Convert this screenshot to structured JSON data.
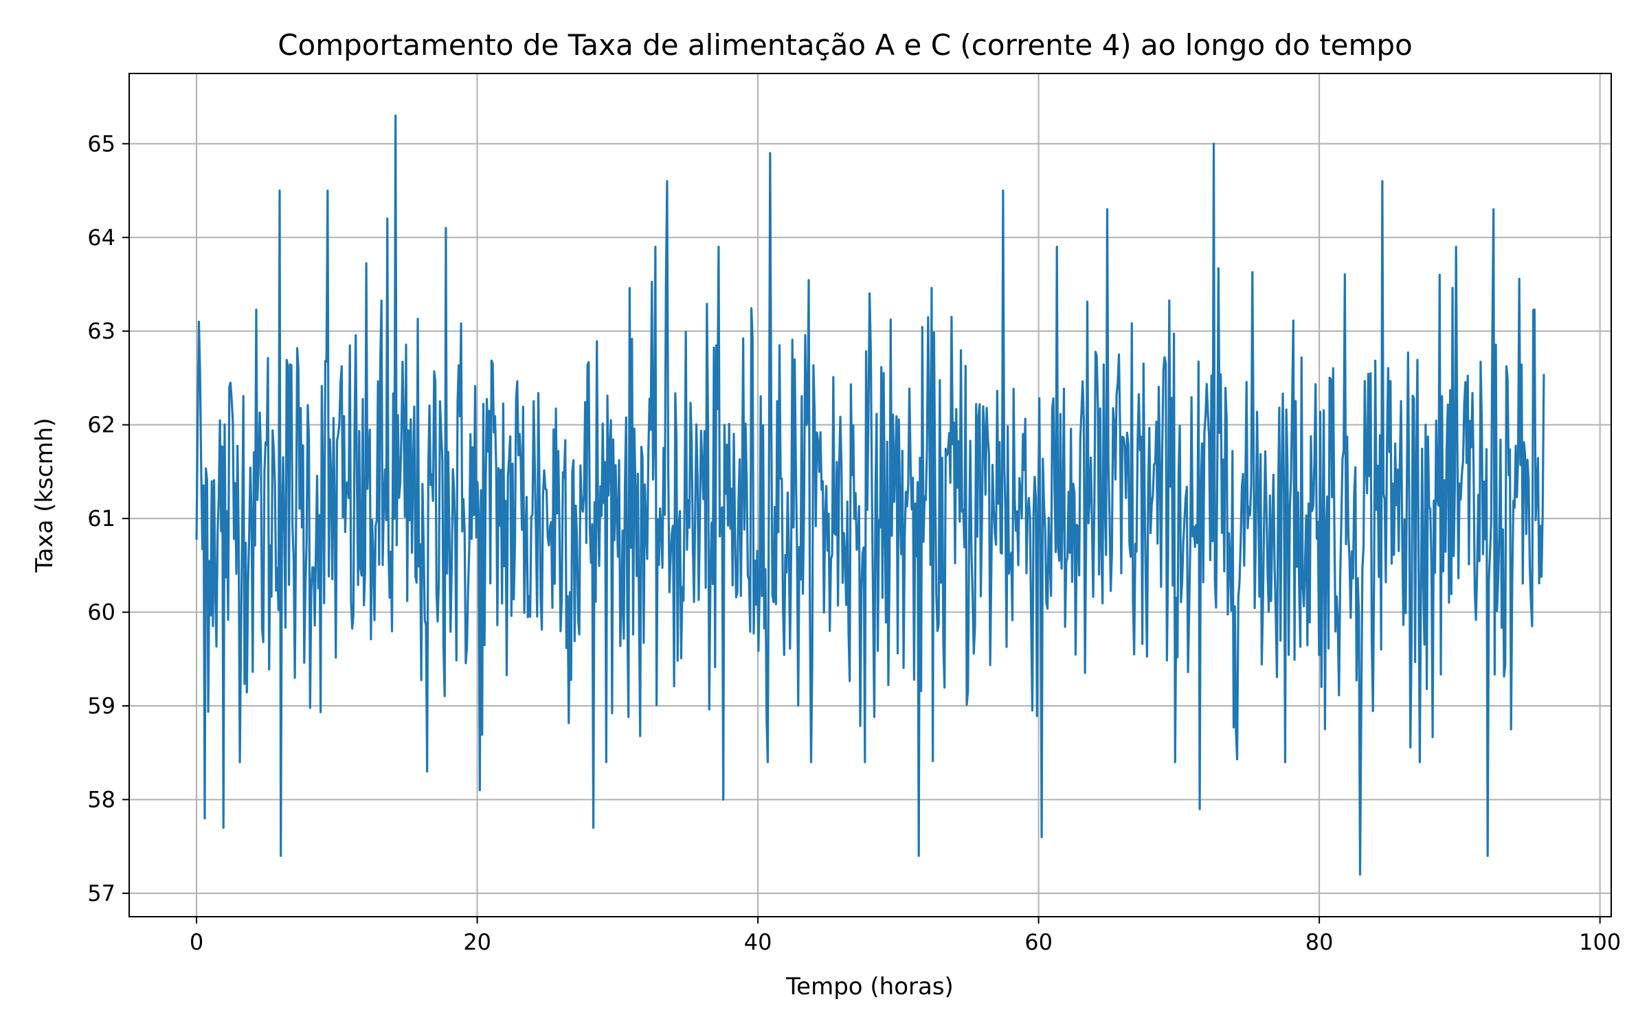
{
  "chart_data": {
    "type": "line",
    "title": "Comportamento de Taxa de alimentação A e C (corrente 4) ao longo do tempo",
    "xlabel": "Tempo (horas)",
    "ylabel": "Taxa (kscmh)",
    "xlim": [
      -4.8,
      100.8
    ],
    "ylim": [
      56.75,
      65.75
    ],
    "xticks": [
      0,
      20,
      40,
      60,
      80,
      100
    ],
    "yticks": [
      57,
      58,
      59,
      60,
      61,
      62,
      63,
      64,
      65
    ],
    "grid": true,
    "legend": "none",
    "series": [
      {
        "color": "#1f77b4",
        "x_range": [
          0,
          96
        ],
        "mean": 61.1,
        "anchors": [
          {
            "x": 0.2,
            "y": 63.1
          },
          {
            "x": 0.6,
            "y": 57.8
          },
          {
            "x": 1.9,
            "y": 57.7
          },
          {
            "x": 5.9,
            "y": 64.5
          },
          {
            "x": 6.0,
            "y": 57.4
          },
          {
            "x": 9.3,
            "y": 64.5
          },
          {
            "x": 13.6,
            "y": 64.2
          },
          {
            "x": 14.2,
            "y": 65.3
          },
          {
            "x": 16.4,
            "y": 58.3
          },
          {
            "x": 17.8,
            "y": 64.1
          },
          {
            "x": 20.2,
            "y": 58.1
          },
          {
            "x": 28.3,
            "y": 57.7
          },
          {
            "x": 33.5,
            "y": 64.6
          },
          {
            "x": 37.5,
            "y": 58.0
          },
          {
            "x": 40.9,
            "y": 64.9
          },
          {
            "x": 51.5,
            "y": 57.4
          },
          {
            "x": 57.5,
            "y": 64.5
          },
          {
            "x": 60.2,
            "y": 57.6
          },
          {
            "x": 64.9,
            "y": 64.3
          },
          {
            "x": 71.5,
            "y": 57.9
          },
          {
            "x": 72.5,
            "y": 65.0
          },
          {
            "x": 82.9,
            "y": 57.2
          },
          {
            "x": 84.5,
            "y": 64.6
          },
          {
            "x": 92.0,
            "y": 57.4
          },
          {
            "x": 92.4,
            "y": 64.3
          }
        ]
      }
    ]
  }
}
